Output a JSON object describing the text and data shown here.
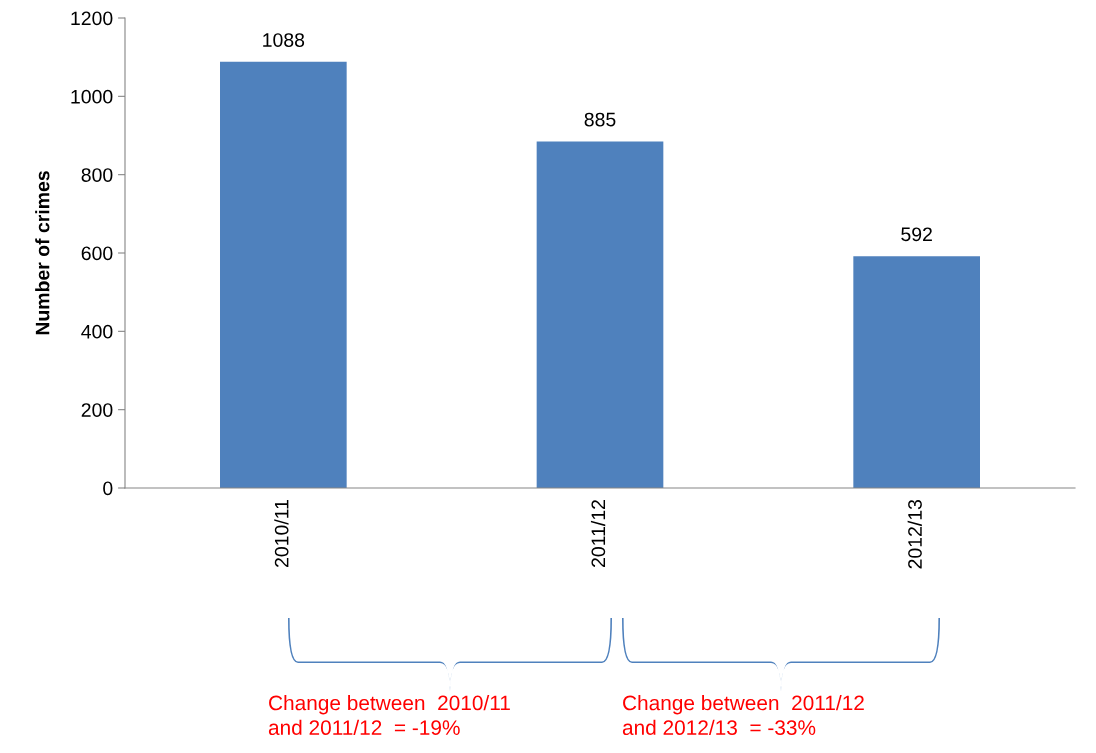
{
  "chart_data": {
    "type": "bar",
    "ylabel": "Number of crimes",
    "categories": [
      "2010/11",
      "2011/12",
      "2012/13"
    ],
    "values": [
      1088,
      885,
      592
    ],
    "color": "#4f81bd",
    "data_labels": true,
    "ylim": [
      0,
      1200
    ],
    "yticks": [
      0,
      200,
      400,
      600,
      800,
      1000,
      1200
    ],
    "grid": false,
    "legend": false,
    "annotations": [
      "Change between  2010/11\nand 2011/12  = -19%",
      "Change between  2011/12\nand 2012/13  = -33%"
    ]
  }
}
